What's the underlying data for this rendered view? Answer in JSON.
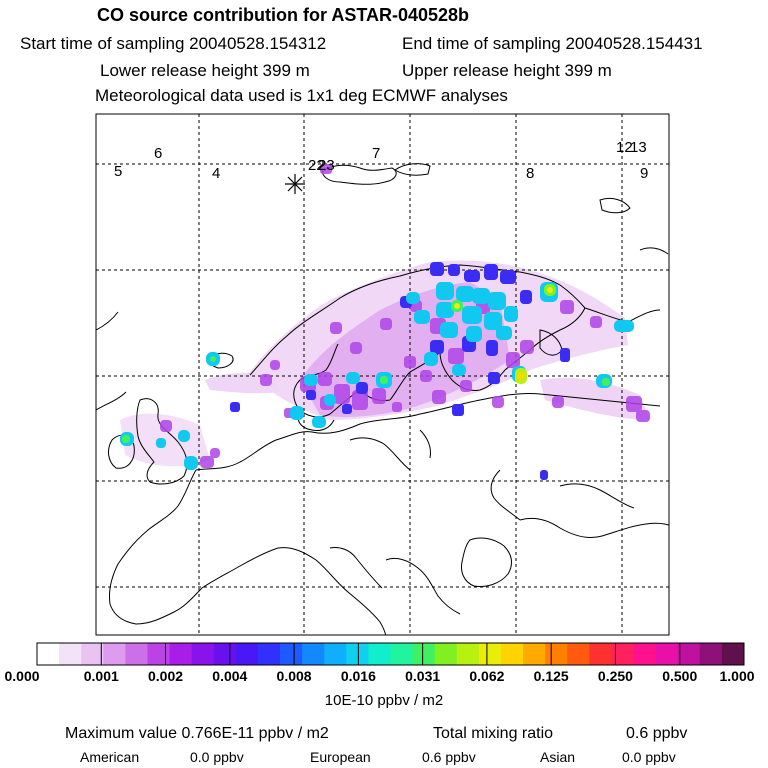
{
  "header": {
    "title": "CO  source contribution for ASTAR-040528b",
    "start": "Start time of sampling 20040528.154312",
    "end": "End time of sampling 20040528.154431",
    "lower": "Lower release height  399 m",
    "upper": "Upper release height  399 m",
    "met": "Meteorological data used is 1x1 deg ECMWF analyses"
  },
  "map": {
    "track_labels": [
      "5",
      "6",
      "4",
      "7",
      "8",
      "9",
      "12",
      "13",
      "22",
      "23"
    ],
    "release_marker": "star-icon"
  },
  "colorbar": {
    "ticks": [
      "0.000",
      "0.001",
      "0.002",
      "0.004",
      "0.008",
      "0.016",
      "0.031",
      "0.062",
      "0.125",
      "0.250",
      "0.500",
      "1.000"
    ],
    "colors": [
      "#ffffff",
      "#f4e2f8",
      "#ebc3f3",
      "#de9cef",
      "#cd6fe8",
      "#bd42e6",
      "#a81ee8",
      "#8a12ea",
      "#6a10ee",
      "#4a18f6",
      "#3030ff",
      "#1e5aff",
      "#1488ff",
      "#10aeff",
      "#10d0f0",
      "#10eecc",
      "#20f4a0",
      "#40f060",
      "#80f020",
      "#b8f010",
      "#e8ee08",
      "#ffd400",
      "#ffaa00",
      "#ff8000",
      "#ff5a10",
      "#ff3030",
      "#ff2060",
      "#ff108c",
      "#e810a8",
      "#c010a0",
      "#90107a",
      "#60104c"
    ],
    "units": "10E-10 ppbv / m2"
  },
  "summary": {
    "max_label": "Maximum value  0.766E-11 ppbv / m2",
    "total_label": "Total mixing ratio",
    "total_value": "0.6 ppbv",
    "american_label": "American",
    "american_value": "0.0 ppbv",
    "european_label": "European",
    "european_value": "0.6 ppbv",
    "asian_label": "Asian",
    "asian_value": "0.0 ppbv"
  }
}
